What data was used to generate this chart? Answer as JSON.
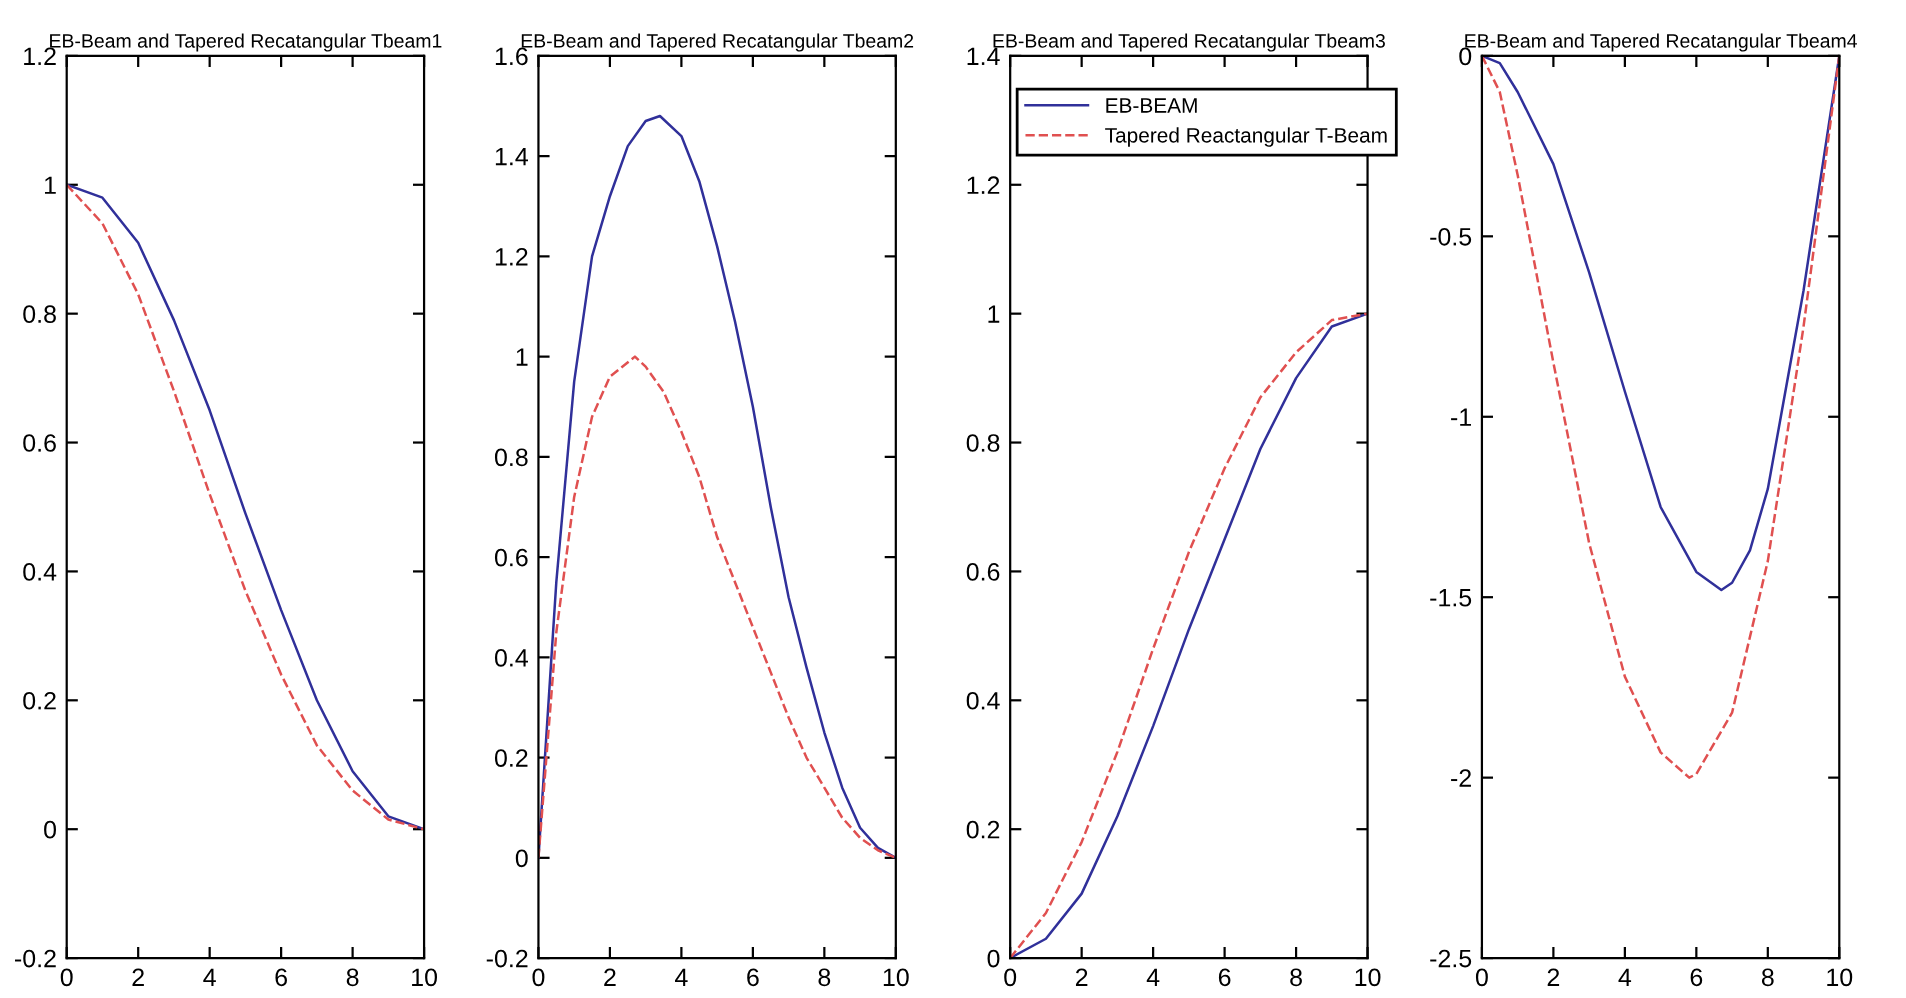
{
  "chart_data": [
    {
      "type": "line",
      "title": "EB-Beam and Tapered Recatangular Tbeam1",
      "xlim": [
        0,
        10
      ],
      "xticks": [
        0,
        2,
        4,
        6,
        8,
        10
      ],
      "ylim": [
        -0.2,
        1.2
      ],
      "yticks": [
        -0.2,
        0,
        0.2,
        0.4,
        0.6,
        0.8,
        1,
        1.2
      ],
      "grid": false,
      "legend": false,
      "series": [
        {
          "color": "#30309a",
          "line_style": "solid",
          "x": [
            0,
            1,
            2,
            3,
            4,
            5,
            6,
            7,
            8,
            9,
            10
          ],
          "values": [
            1.0,
            0.98,
            0.91,
            0.79,
            0.65,
            0.49,
            0.34,
            0.2,
            0.09,
            0.02,
            0
          ]
        },
        {
          "color": "#e05050",
          "line_style": "dashed",
          "x": [
            0,
            1,
            2,
            3,
            4,
            5,
            6,
            7,
            8,
            9,
            10
          ],
          "values": [
            1.0,
            0.94,
            0.83,
            0.68,
            0.52,
            0.37,
            0.24,
            0.13,
            0.06,
            0.015,
            0
          ]
        }
      ]
    },
    {
      "type": "line",
      "title": "EB-Beam and Tapered Recatangular Tbeam2",
      "xlim": [
        0,
        10
      ],
      "xticks": [
        0,
        2,
        4,
        6,
        8,
        10
      ],
      "ylim": [
        -0.2,
        1.6
      ],
      "yticks": [
        -0.2,
        0,
        0.2,
        0.4,
        0.6,
        0.8,
        1,
        1.2,
        1.4,
        1.6
      ],
      "grid": false,
      "legend": false,
      "series": [
        {
          "color": "#30309a",
          "line_style": "solid",
          "x": [
            0,
            0.5,
            1,
            1.5,
            2,
            2.5,
            3,
            3.4,
            4,
            4.5,
            5,
            5.5,
            6,
            6.5,
            7,
            7.5,
            8,
            8.5,
            9,
            9.5,
            10
          ],
          "values": [
            0,
            0.55,
            0.95,
            1.2,
            1.32,
            1.42,
            1.47,
            1.48,
            1.44,
            1.35,
            1.22,
            1.07,
            0.9,
            0.7,
            0.52,
            0.38,
            0.25,
            0.14,
            0.06,
            0.02,
            0
          ]
        },
        {
          "color": "#e05050",
          "line_style": "dashed",
          "x": [
            0,
            0.5,
            1,
            1.5,
            2,
            2.7,
            3,
            3.5,
            4,
            4.5,
            5,
            5.5,
            6,
            6.5,
            7,
            7.5,
            8,
            8.5,
            9,
            9.5,
            10
          ],
          "values": [
            0,
            0.45,
            0.72,
            0.88,
            0.96,
            1.0,
            0.98,
            0.93,
            0.85,
            0.76,
            0.64,
            0.55,
            0.46,
            0.37,
            0.28,
            0.2,
            0.14,
            0.08,
            0.04,
            0.015,
            0
          ]
        }
      ]
    },
    {
      "type": "line",
      "title": "EB-Beam and Tapered Recatangular Tbeam3",
      "xlim": [
        0,
        10
      ],
      "xticks": [
        0,
        2,
        4,
        6,
        8,
        10
      ],
      "ylim": [
        0,
        1.4
      ],
      "yticks": [
        0,
        0.2,
        0.4,
        0.6,
        0.8,
        1,
        1.2,
        1.4
      ],
      "grid": false,
      "legend": "top",
      "series": [
        {
          "name": "EB-BEAM",
          "color": "#30309a",
          "line_style": "solid",
          "x": [
            0,
            1,
            2,
            3,
            4,
            5,
            6,
            7,
            8,
            9,
            10
          ],
          "values": [
            0,
            0.03,
            0.1,
            0.22,
            0.36,
            0.51,
            0.65,
            0.79,
            0.9,
            0.98,
            1.0
          ]
        },
        {
          "name": "Tapered Reactangular T-Beam",
          "color": "#e05050",
          "line_style": "dashed",
          "x": [
            0,
            1,
            2,
            3,
            4,
            5,
            6,
            7,
            8,
            9,
            10
          ],
          "values": [
            0,
            0.07,
            0.18,
            0.32,
            0.48,
            0.63,
            0.76,
            0.87,
            0.94,
            0.99,
            1.0
          ]
        }
      ]
    },
    {
      "type": "line",
      "title": "EB-Beam and Tapered Recatangular Tbeam4",
      "xlim": [
        0,
        10
      ],
      "xticks": [
        0,
        2,
        4,
        6,
        8,
        10
      ],
      "ylim": [
        -2.5,
        0
      ],
      "yticks": [
        -2.5,
        -2,
        -1.5,
        -1,
        -0.5,
        0
      ],
      "grid": false,
      "legend": false,
      "series": [
        {
          "color": "#30309a",
          "line_style": "solid",
          "x": [
            0,
            0.5,
            1,
            2,
            3,
            4,
            5,
            6,
            6.7,
            7,
            7.5,
            8,
            9,
            10
          ],
          "values": [
            0,
            -0.02,
            -0.1,
            -0.3,
            -0.6,
            -0.93,
            -1.25,
            -1.43,
            -1.48,
            -1.46,
            -1.37,
            -1.2,
            -0.65,
            0
          ]
        },
        {
          "color": "#e05050",
          "line_style": "dashed",
          "x": [
            0,
            0.5,
            1,
            2,
            3,
            4,
            5,
            5.8,
            6,
            7,
            8,
            9,
            10
          ],
          "values": [
            0,
            -0.1,
            -0.33,
            -0.85,
            -1.35,
            -1.72,
            -1.93,
            -2.0,
            -1.99,
            -1.82,
            -1.4,
            -0.75,
            0
          ]
        }
      ]
    }
  ]
}
